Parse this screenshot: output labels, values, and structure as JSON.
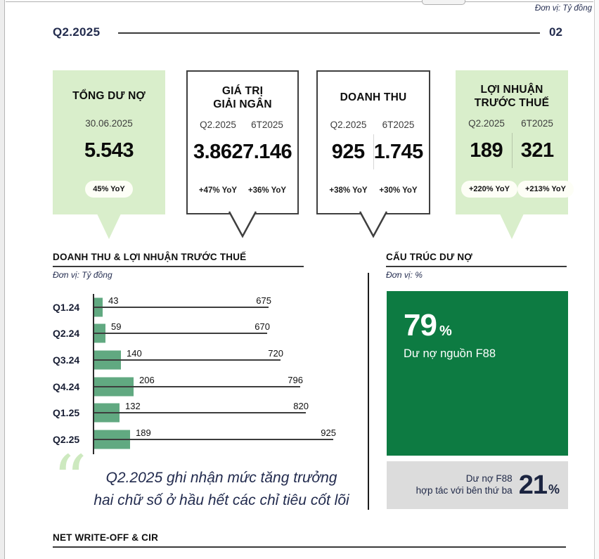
{
  "page": {
    "unit_note": "Đơn vị: Tỷ đồng",
    "title": "Q2.2025",
    "page_number": "02"
  },
  "colors": {
    "light_green": "#d9eecb",
    "dark_green": "#0d7b42",
    "bar_green": "#61a981",
    "line_dark": "#3d3d3d",
    "gray_box": "#dcdcdc",
    "navy": "#222c4e",
    "quote_green": "#cde9bf"
  },
  "cards": [
    {
      "variant": "green",
      "title_lines": [
        "TỔNG DƯ NỢ"
      ],
      "columns": [
        {
          "label": "30.06.2025",
          "value": "5.543",
          "yoy": "45% YoY"
        }
      ]
    },
    {
      "variant": "outline",
      "title_lines": [
        "GIÁ TRỊ",
        "GIẢI NGÂN"
      ],
      "columns": [
        {
          "label": "Q2.2025",
          "value": "3.862",
          "yoy": "+47% YoY"
        },
        {
          "label": "6T2025",
          "value": "7.146",
          "yoy": "+36% YoY"
        }
      ]
    },
    {
      "variant": "outline",
      "title_lines": [
        "DOANH THU"
      ],
      "columns": [
        {
          "label": "Q2.2025",
          "value": "925",
          "yoy": "+38% YoY"
        },
        {
          "label": "6T2025",
          "value": "1.745",
          "yoy": "+30% YoY"
        }
      ]
    },
    {
      "variant": "green",
      "title_lines": [
        "LỢI NHUẬN",
        "TRƯỚC THUẾ"
      ],
      "columns": [
        {
          "label": "Q2.2025",
          "value": "189",
          "yoy": "+220% YoY"
        },
        {
          "label": "6T2025",
          "value": "321",
          "yoy": "+213% YoY"
        }
      ]
    }
  ],
  "left_section": {
    "heading": "DOANH THU & LỢI NHUẬN TRƯỚC THUẾ",
    "unit": "Đơn vị: Tỷ đồng"
  },
  "right_section": {
    "heading": "CẤU TRÚC DƯ NỢ",
    "unit": "Đơn vị: %",
    "primary_value": "79",
    "primary_unit": "%",
    "primary_label": "Dư nợ nguồn F88",
    "secondary_line1": "Dư nợ F88",
    "secondary_line2": "hợp tác với bên thứ ba",
    "secondary_value": "21",
    "secondary_unit": "%"
  },
  "quote": {
    "line1": "Q2.2025 ghi nhận mức tăng trưởng",
    "line2": "hai chữ số ở hầu hết các chỉ tiêu cốt lõi"
  },
  "footer": {
    "heading": "NET WRITE-OFF & CIR"
  },
  "chart_data": [
    {
      "type": "bar",
      "orientation": "horizontal",
      "title": "DOANH THU & LỢI NHUẬN TRƯỚC THUẾ",
      "unit_label": "Đơn vị: Tỷ đồng",
      "categories": [
        "Q1.24",
        "Q2.24",
        "Q3.24",
        "Q4.24",
        "Q1.25",
        "Q2.25"
      ],
      "series": [
        {
          "name": "Lợi nhuận trước thuế",
          "render": "thick-bar",
          "color": "#61a981",
          "values": [
            43,
            59,
            140,
            206,
            132,
            189
          ]
        },
        {
          "name": "Doanh thu",
          "render": "thin-line",
          "color": "#3d3d3d",
          "values": [
            675,
            670,
            720,
            796,
            820,
            925
          ]
        }
      ],
      "xlim": [
        0,
        925
      ],
      "value_labels": true,
      "grid": false,
      "legend": false
    },
    {
      "type": "bar",
      "title": "CẤU TRÚC DƯ NỢ",
      "unit_label": "Đơn vị: %",
      "categories": [
        "Dư nợ nguồn F88",
        "Dư nợ F88 hợp tác với bên thứ ba"
      ],
      "values": [
        79,
        21
      ],
      "ylim": [
        0,
        100
      ]
    }
  ]
}
